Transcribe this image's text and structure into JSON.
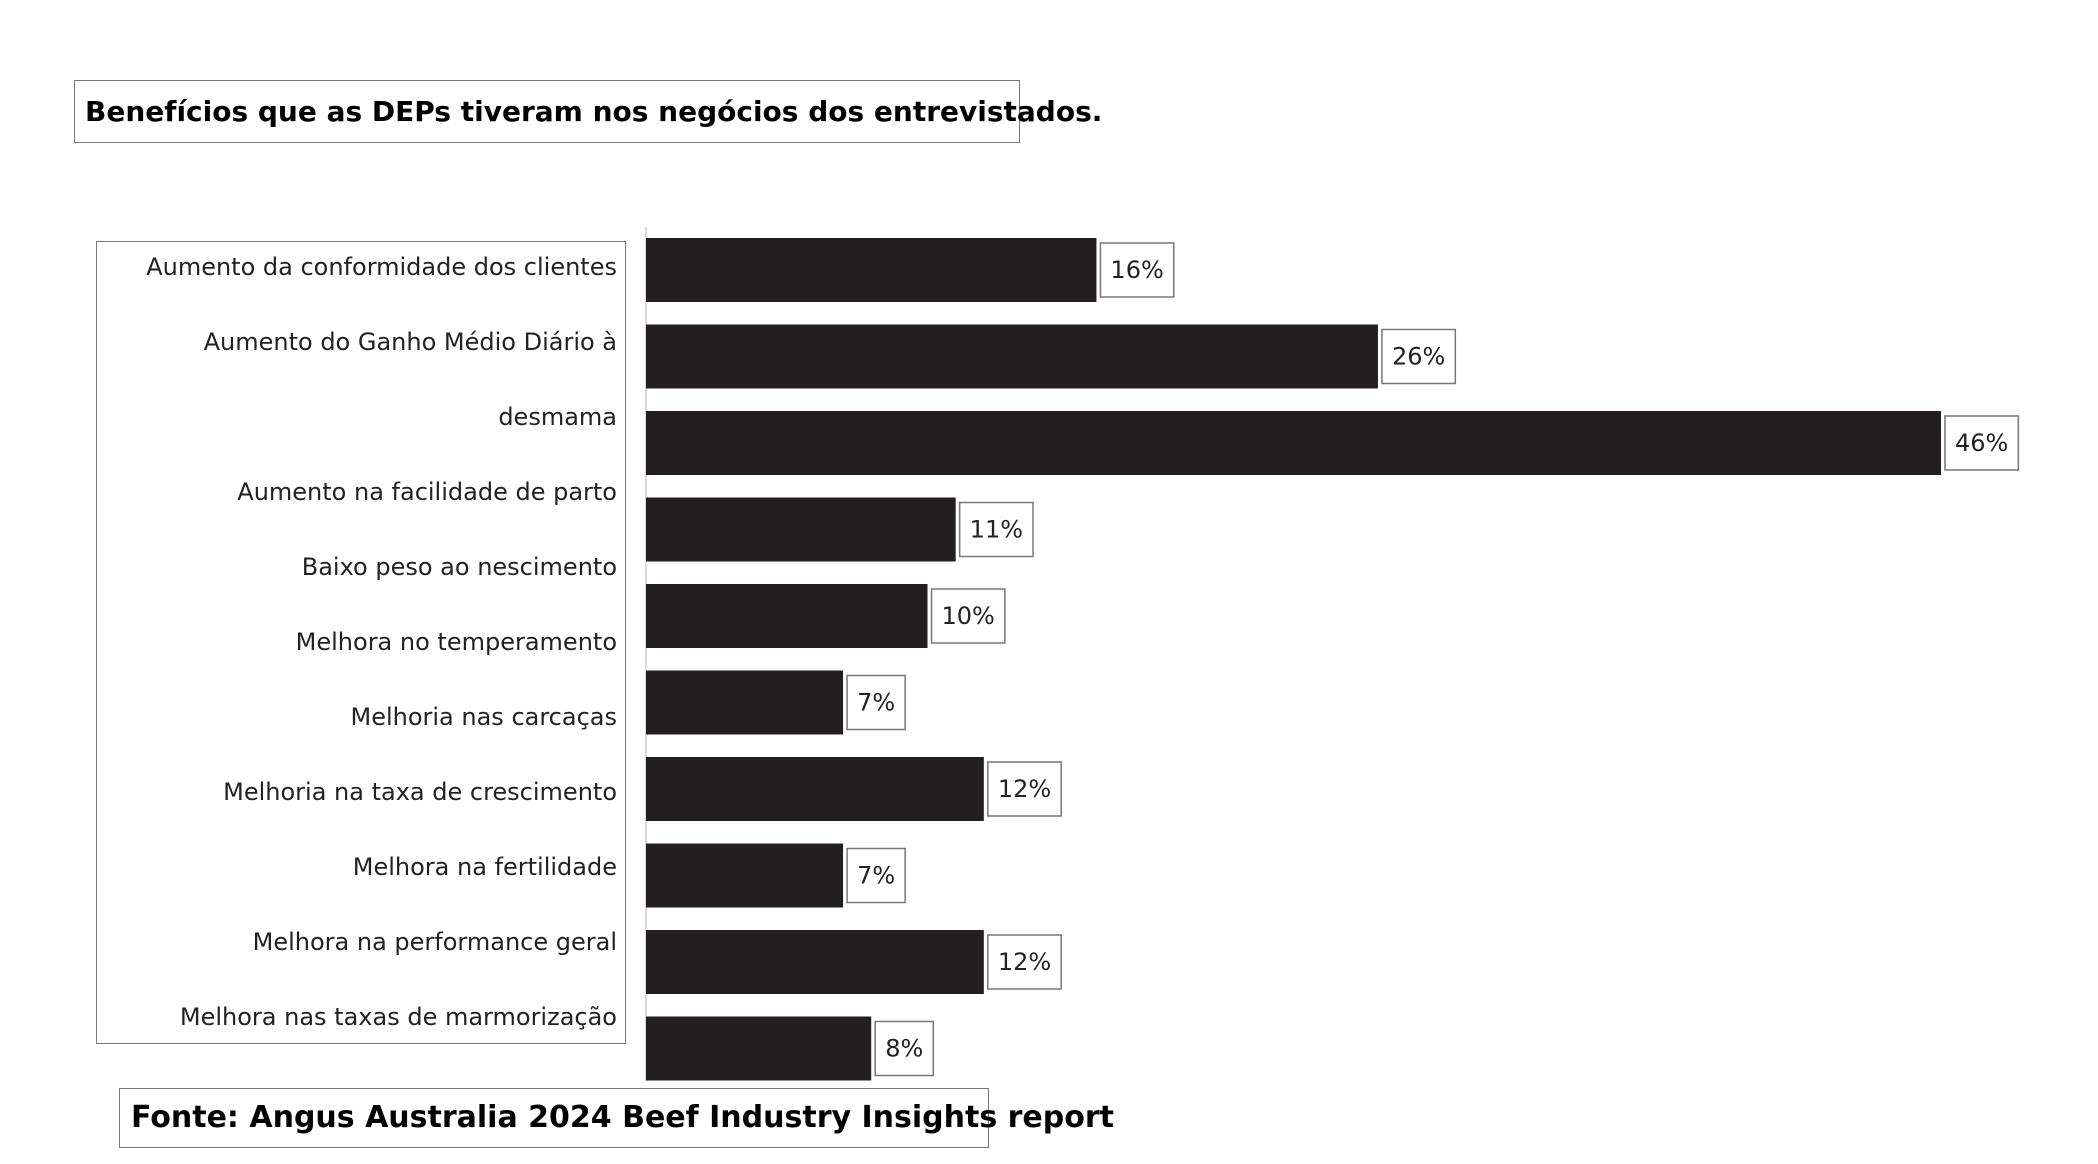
{
  "chart_data": {
    "type": "bar",
    "orientation": "horizontal",
    "title": "Benefícios que as DEPs tiveram nos negócios dos entrevistados.",
    "categories": [
      "Aumento da conformidade dos clientes",
      "Aumento do Ganho Médio Diário à desmama",
      "Aumento na facilidade de parto",
      "Baixo peso ao nescimento",
      "Melhora no temperamento",
      "Melhoria nas carcaças",
      "Melhoria na taxa de crescimento",
      "Melhora na fertilidade",
      "Melhora na performance geral",
      "Melhora nas taxas de marmorização"
    ],
    "values": [
      16,
      26,
      46,
      11,
      10,
      7,
      12,
      7,
      12,
      8
    ],
    "value_labels": [
      "16%",
      "26%",
      "46%",
      "11%",
      "10%",
      "7%",
      "12%",
      "7%",
      "12%",
      "8%"
    ],
    "color": "#231f20",
    "xlim": [
      0,
      46
    ],
    "source": "Fonte: Angus Australia 2024 Beef Industry Insights report"
  }
}
